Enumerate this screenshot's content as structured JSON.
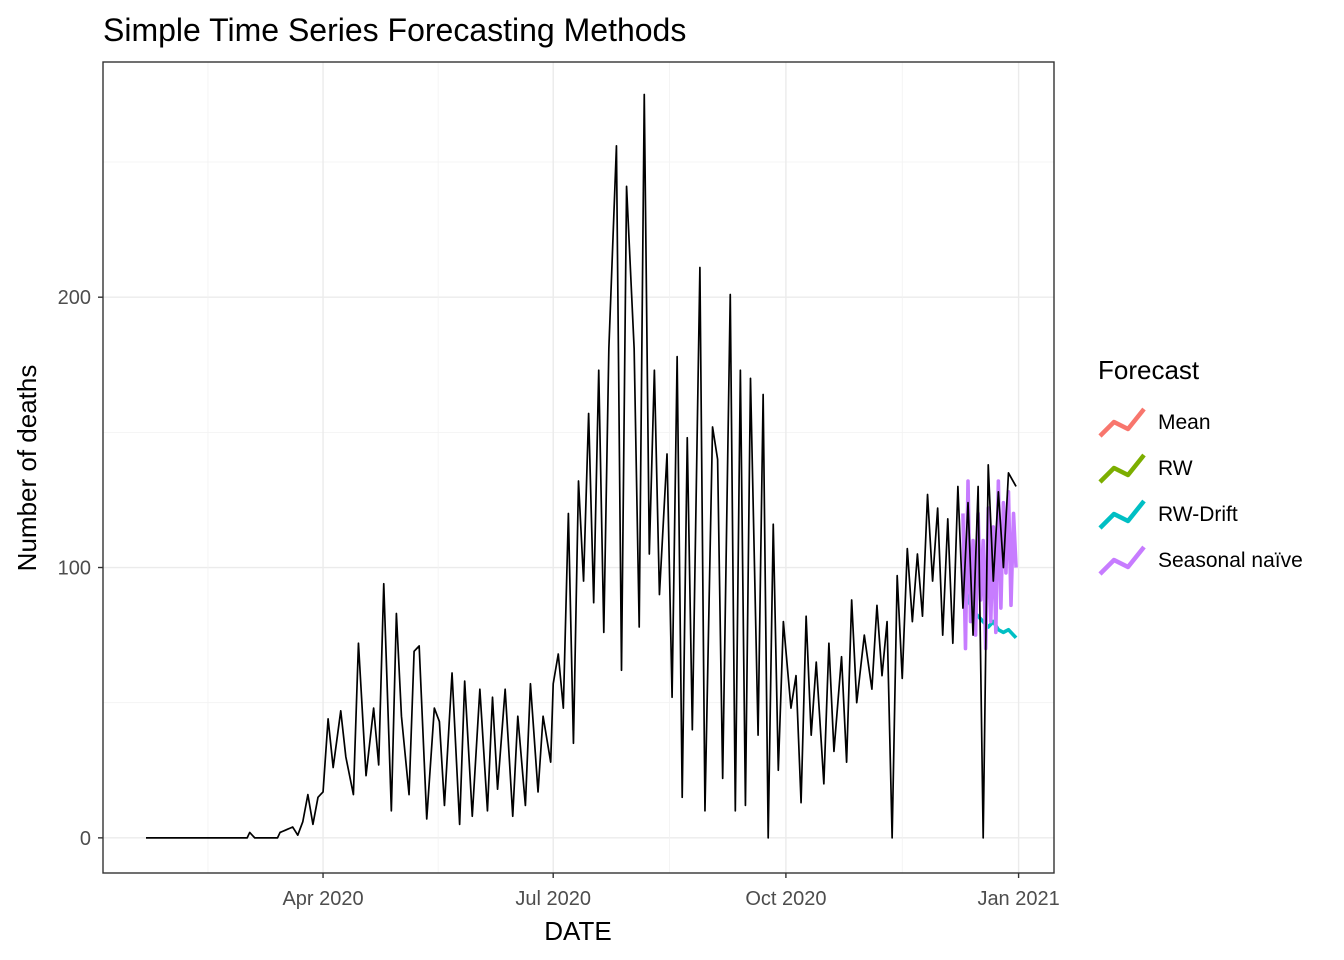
{
  "chart_data": {
    "type": "line",
    "title": "Simple Time Series Forecasting Methods",
    "xlabel": "DATE",
    "ylabel": "Number of deaths",
    "x_start": "2020-01-22",
    "x_end": "2020-12-31",
    "xlim": [
      "2020-01-05",
      "2021-01-15"
    ],
    "ylim": [
      -13,
      287
    ],
    "x_ticks": [
      {
        "date": "2020-04-01",
        "label": "Apr 2020"
      },
      {
        "date": "2020-07-01",
        "label": "Jul 2020"
      },
      {
        "date": "2020-10-01",
        "label": "Oct 2020"
      },
      {
        "date": "2021-01-01",
        "label": "Jan 2021"
      }
    ],
    "y_ticks": [
      0,
      100,
      200
    ],
    "grid": true,
    "legend": {
      "title": "Forecast",
      "position": "right",
      "entries": [
        {
          "label": "Mean",
          "color": "#F8766D"
        },
        {
          "label": "RW",
          "color": "#7CAE00"
        },
        {
          "label": "RW-Drift",
          "color": "#00BFC4"
        },
        {
          "label": "Seasonal naïve",
          "color": "#C77CFF"
        }
      ]
    },
    "series": [
      {
        "color": "#000000",
        "keypoints": [
          [
            "2020-01-22",
            0
          ],
          [
            "2020-03-02",
            0
          ],
          [
            "2020-03-03",
            2
          ],
          [
            "2020-03-05",
            0
          ],
          [
            "2020-03-14",
            0
          ],
          [
            "2020-03-15",
            2
          ],
          [
            "2020-03-20",
            4
          ],
          [
            "2020-03-22",
            1
          ],
          [
            "2020-03-24",
            6
          ],
          [
            "2020-03-26",
            16
          ],
          [
            "2020-03-28",
            5
          ],
          [
            "2020-03-30",
            15
          ],
          [
            "2020-04-01",
            17
          ],
          [
            "2020-04-03",
            44
          ],
          [
            "2020-04-05",
            26
          ],
          [
            "2020-04-08",
            47
          ],
          [
            "2020-04-10",
            30
          ],
          [
            "2020-04-13",
            16
          ],
          [
            "2020-04-15",
            72
          ],
          [
            "2020-04-18",
            23
          ],
          [
            "2020-04-21",
            48
          ],
          [
            "2020-04-23",
            27
          ],
          [
            "2020-04-25",
            94
          ],
          [
            "2020-04-28",
            10
          ],
          [
            "2020-04-30",
            83
          ],
          [
            "2020-05-02",
            45
          ],
          [
            "2020-05-05",
            16
          ],
          [
            "2020-05-07",
            69
          ],
          [
            "2020-05-09",
            71
          ],
          [
            "2020-05-12",
            7
          ],
          [
            "2020-05-15",
            48
          ],
          [
            "2020-05-17",
            43
          ],
          [
            "2020-05-19",
            12
          ],
          [
            "2020-05-22",
            61
          ],
          [
            "2020-05-25",
            5
          ],
          [
            "2020-05-27",
            58
          ],
          [
            "2020-05-30",
            8
          ],
          [
            "2020-06-02",
            55
          ],
          [
            "2020-06-05",
            10
          ],
          [
            "2020-06-07",
            52
          ],
          [
            "2020-06-09",
            18
          ],
          [
            "2020-06-12",
            55
          ],
          [
            "2020-06-15",
            8
          ],
          [
            "2020-06-17",
            45
          ],
          [
            "2020-06-20",
            12
          ],
          [
            "2020-06-22",
            57
          ],
          [
            "2020-06-25",
            17
          ],
          [
            "2020-06-27",
            45
          ],
          [
            "2020-06-30",
            28
          ],
          [
            "2020-07-01",
            57
          ],
          [
            "2020-07-03",
            68
          ],
          [
            "2020-07-05",
            48
          ],
          [
            "2020-07-07",
            120
          ],
          [
            "2020-07-09",
            35
          ],
          [
            "2020-07-11",
            132
          ],
          [
            "2020-07-13",
            95
          ],
          [
            "2020-07-15",
            157
          ],
          [
            "2020-07-17",
            87
          ],
          [
            "2020-07-19",
            173
          ],
          [
            "2020-07-21",
            76
          ],
          [
            "2020-07-23",
            181
          ],
          [
            "2020-07-26",
            256
          ],
          [
            "2020-07-28",
            62
          ],
          [
            "2020-07-30",
            241
          ],
          [
            "2020-08-02",
            181
          ],
          [
            "2020-08-04",
            78
          ],
          [
            "2020-08-06",
            275
          ],
          [
            "2020-08-08",
            105
          ],
          [
            "2020-08-10",
            173
          ],
          [
            "2020-08-12",
            90
          ],
          [
            "2020-08-15",
            142
          ],
          [
            "2020-08-17",
            52
          ],
          [
            "2020-08-19",
            178
          ],
          [
            "2020-08-21",
            15
          ],
          [
            "2020-08-23",
            148
          ],
          [
            "2020-08-25",
            40
          ],
          [
            "2020-08-28",
            211
          ],
          [
            "2020-08-30",
            10
          ],
          [
            "2020-09-02",
            152
          ],
          [
            "2020-09-04",
            140
          ],
          [
            "2020-09-06",
            22
          ],
          [
            "2020-09-09",
            201
          ],
          [
            "2020-09-11",
            10
          ],
          [
            "2020-09-13",
            173
          ],
          [
            "2020-09-15",
            12
          ],
          [
            "2020-09-17",
            170
          ],
          [
            "2020-09-20",
            38
          ],
          [
            "2020-09-22",
            164
          ],
          [
            "2020-09-24",
            0
          ],
          [
            "2020-09-26",
            116
          ],
          [
            "2020-09-28",
            25
          ],
          [
            "2020-09-30",
            80
          ],
          [
            "2020-10-03",
            48
          ],
          [
            "2020-10-05",
            60
          ],
          [
            "2020-10-07",
            13
          ],
          [
            "2020-10-09",
            82
          ],
          [
            "2020-10-11",
            38
          ],
          [
            "2020-10-13",
            65
          ],
          [
            "2020-10-16",
            20
          ],
          [
            "2020-10-18",
            72
          ],
          [
            "2020-10-20",
            32
          ],
          [
            "2020-10-23",
            67
          ],
          [
            "2020-10-25",
            28
          ],
          [
            "2020-10-27",
            88
          ],
          [
            "2020-10-29",
            50
          ],
          [
            "2020-11-01",
            75
          ],
          [
            "2020-11-04",
            55
          ],
          [
            "2020-11-06",
            86
          ],
          [
            "2020-11-08",
            60
          ],
          [
            "2020-11-10",
            80
          ],
          [
            "2020-11-12",
            0
          ],
          [
            "2020-11-14",
            97
          ],
          [
            "2020-11-16",
            59
          ],
          [
            "2020-11-18",
            107
          ],
          [
            "2020-11-20",
            80
          ],
          [
            "2020-11-22",
            105
          ],
          [
            "2020-11-24",
            82
          ],
          [
            "2020-11-26",
            127
          ],
          [
            "2020-11-28",
            95
          ],
          [
            "2020-11-30",
            122
          ],
          [
            "2020-12-02",
            75
          ],
          [
            "2020-12-04",
            118
          ],
          [
            "2020-12-06",
            72
          ],
          [
            "2020-12-08",
            130
          ],
          [
            "2020-12-10",
            85
          ],
          [
            "2020-12-12",
            124
          ],
          [
            "2020-12-14",
            75
          ],
          [
            "2020-12-16",
            130
          ],
          [
            "2020-12-18",
            0
          ],
          [
            "2020-12-20",
            138
          ],
          [
            "2020-12-22",
            95
          ],
          [
            "2020-12-24",
            128
          ],
          [
            "2020-12-26",
            100
          ],
          [
            "2020-12-28",
            135
          ],
          [
            "2020-12-31",
            130
          ]
        ]
      },
      {
        "name": "Seasonal naïve",
        "color": "#C77CFF",
        "points": [
          [
            "2020-12-10",
            120
          ],
          [
            "2020-12-11",
            70
          ],
          [
            "2020-12-12",
            132
          ],
          [
            "2020-12-13",
            80
          ],
          [
            "2020-12-14",
            110
          ],
          [
            "2020-12-15",
            75
          ],
          [
            "2020-12-16",
            120
          ],
          [
            "2020-12-17",
            88
          ],
          [
            "2020-12-18",
            110
          ],
          [
            "2020-12-19",
            70
          ],
          [
            "2020-12-20",
            122
          ],
          [
            "2020-12-21",
            80
          ],
          [
            "2020-12-22",
            115
          ],
          [
            "2020-12-23",
            76
          ],
          [
            "2020-12-24",
            132
          ],
          [
            "2020-12-25",
            85
          ],
          [
            "2020-12-26",
            124
          ],
          [
            "2020-12-27",
            98
          ],
          [
            "2020-12-28",
            128
          ],
          [
            "2020-12-29",
            86
          ],
          [
            "2020-12-30",
            120
          ],
          [
            "2020-12-31",
            100
          ]
        ]
      },
      {
        "name": "RW-Drift",
        "color": "#00BFC4",
        "points": [
          [
            "2020-12-10",
            95
          ],
          [
            "2020-12-12",
            88
          ],
          [
            "2020-12-14",
            84
          ],
          [
            "2020-12-16",
            82
          ],
          [
            "2020-12-18",
            80
          ],
          [
            "2020-12-20",
            78
          ],
          [
            "2020-12-22",
            80
          ],
          [
            "2020-12-24",
            77
          ],
          [
            "2020-12-26",
            76
          ],
          [
            "2020-12-28",
            77
          ],
          [
            "2020-12-30",
            75
          ],
          [
            "2020-12-31",
            74
          ]
        ]
      }
    ]
  }
}
